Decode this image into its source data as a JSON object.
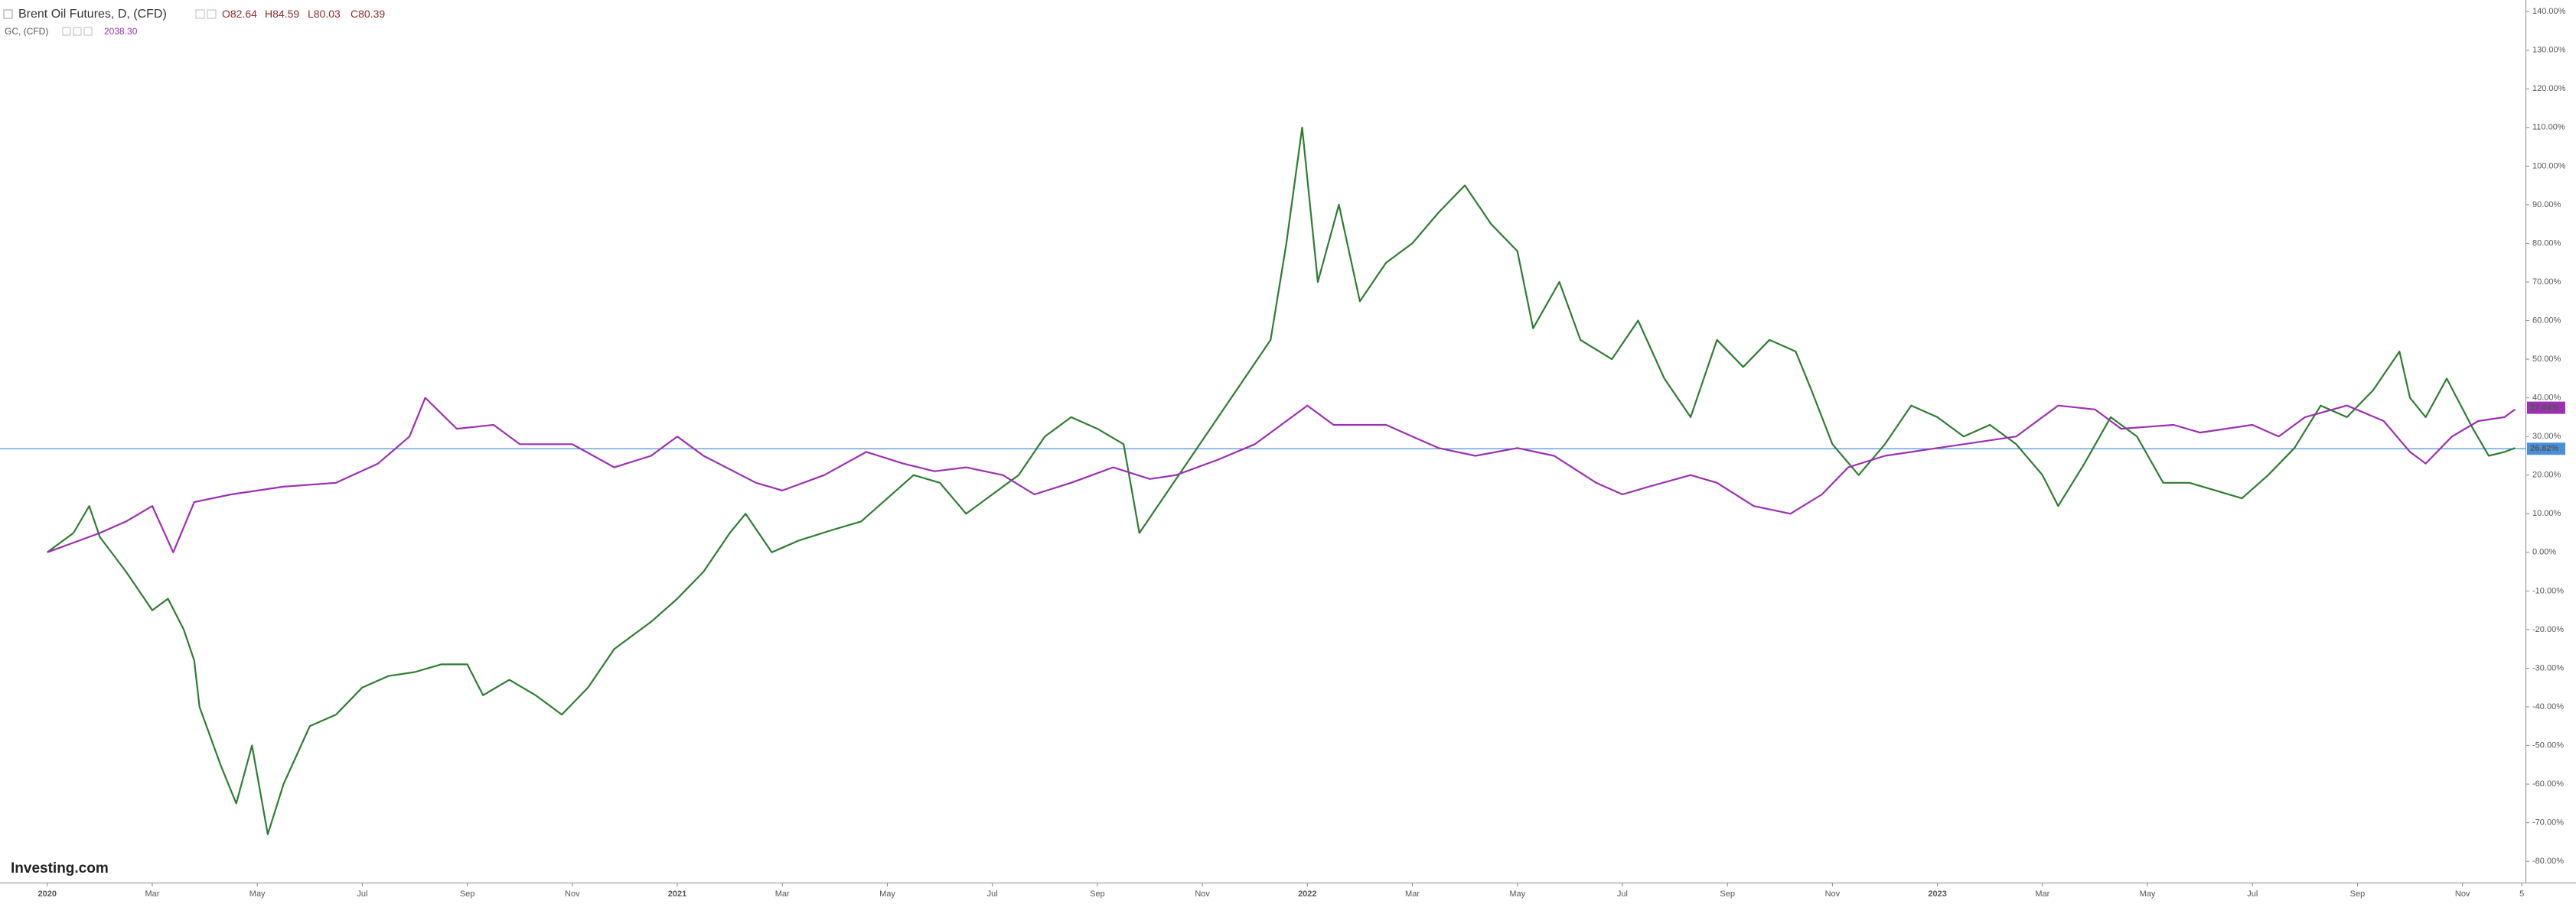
{
  "chart_data": {
    "type": "line",
    "title": "Brent Oil Futures, D, (CFD)",
    "ohlc": [
      "O82.64",
      "H84.59",
      "L80.03",
      "C80.39"
    ],
    "compare_title": "GC, (CFD)",
    "compare_value": "2038.30",
    "logo": "Investing.com",
    "xlim": [
      -0.9,
      47.2
    ],
    "xticks": [
      {
        "value": 0,
        "label": "2020"
      },
      {
        "value": 2,
        "label": "Mar"
      },
      {
        "value": 4,
        "label": "May"
      },
      {
        "value": 6,
        "label": "Jul"
      },
      {
        "value": 8,
        "label": "Sep"
      },
      {
        "value": 10,
        "label": "Nov"
      },
      {
        "value": 12,
        "label": "2021"
      },
      {
        "value": 14,
        "label": "Mar"
      },
      {
        "value": 16,
        "label": "May"
      },
      {
        "value": 18,
        "label": "Jul"
      },
      {
        "value": 20,
        "label": "Sep"
      },
      {
        "value": 22,
        "label": "Nov"
      },
      {
        "value": 24,
        "label": "2022"
      },
      {
        "value": 26,
        "label": "Mar"
      },
      {
        "value": 28,
        "label": "May"
      },
      {
        "value": 30,
        "label": "Jul"
      },
      {
        "value": 32,
        "label": "Sep"
      },
      {
        "value": 34,
        "label": "Nov"
      },
      {
        "value": 36,
        "label": "2023"
      },
      {
        "value": 38,
        "label": "Mar"
      },
      {
        "value": 40,
        "label": "May"
      },
      {
        "value": 42,
        "label": "Jul"
      },
      {
        "value": 44,
        "label": "Sep"
      },
      {
        "value": 46,
        "label": "Nov"
      },
      {
        "value": 47.13,
        "label": "5"
      }
    ],
    "ylim": [
      -85.5,
      143
    ],
    "yticks": [
      {
        "value": 140,
        "label": "140.00%"
      },
      {
        "value": 130,
        "label": "130.00%"
      },
      {
        "value": 120,
        "label": "120.00%"
      },
      {
        "value": 110,
        "label": "110.00%"
      },
      {
        "value": 100,
        "label": "100.00%"
      },
      {
        "value": 90,
        "label": "90.00%"
      },
      {
        "value": 80,
        "label": "80.00%"
      },
      {
        "value": 70,
        "label": "70.00%"
      },
      {
        "value": 60,
        "label": "60.00%"
      },
      {
        "value": 50,
        "label": "50.00%"
      },
      {
        "value": 40,
        "label": "40.00%"
      },
      {
        "value": 30,
        "label": "30.00%"
      },
      {
        "value": 20,
        "label": "20.00%"
      },
      {
        "value": 10,
        "label": "10.00%"
      },
      {
        "value": 0,
        "label": "0.00%"
      },
      {
        "value": -10,
        "label": "-10.00%"
      },
      {
        "value": -20,
        "label": "-20.00%"
      },
      {
        "value": -30,
        "label": "-30.00%"
      },
      {
        "value": -40,
        "label": "-40.00%"
      },
      {
        "value": -50,
        "label": "-50.00%"
      },
      {
        "value": -60,
        "label": "-60.00%"
      },
      {
        "value": -70,
        "label": "-70.00%"
      },
      {
        "value": -80,
        "label": "-80.00%"
      }
    ],
    "hline": {
      "value": 26.82,
      "label": "26.82%",
      "color": "#4a90d9"
    },
    "series": [
      {
        "color": "#2e7d32",
        "x": [
          0,
          0.5,
          0.8,
          1,
          1.5,
          2,
          2.3,
          2.6,
          2.8,
          2.9,
          3.3,
          3.6,
          3.9,
          4.2,
          4.5,
          5,
          5.5,
          6,
          6.5,
          7,
          7.5,
          8,
          8.3,
          8.8,
          9.3,
          9.8,
          10.3,
          10.8,
          11.5,
          12,
          12.5,
          13,
          13.3,
          13.8,
          14.3,
          15,
          15.5,
          16,
          16.5,
          17,
          17.5,
          18,
          18.5,
          19,
          19.5,
          20,
          20.5,
          20.8,
          21.3,
          21.8,
          22.3,
          22.8,
          23.3,
          23.6,
          23.9,
          24.2,
          24.6,
          25,
          25.5,
          26,
          26.5,
          27,
          27.5,
          28,
          28.3,
          28.8,
          29.2,
          29.8,
          30.3,
          30.8,
          31.3,
          31.8,
          32.3,
          32.8,
          33.3,
          33.6,
          34,
          34.5,
          35,
          35.5,
          36,
          36.5,
          37,
          37.5,
          38,
          38.3,
          38.8,
          39.3,
          39.8,
          40.3,
          40.8,
          41.3,
          41.8,
          42.3,
          42.8,
          43.3,
          43.8,
          44.3,
          44.8,
          45,
          45.3,
          45.7,
          46.2,
          46.5,
          46.8,
          47
        ],
        "values": [
          0,
          5,
          12,
          4,
          -5,
          -15,
          -12,
          -20,
          -28,
          -40,
          -55,
          -65,
          -50,
          -73,
          -60,
          -45,
          -42,
          -35,
          -32,
          -31,
          -29,
          -29,
          -37,
          -33,
          -37,
          -42,
          -35,
          -25,
          -18,
          -12,
          -5,
          5,
          10,
          0,
          3,
          6,
          8,
          14,
          20,
          18,
          10,
          15,
          20,
          30,
          35,
          32,
          28,
          5,
          15,
          25,
          35,
          45,
          55,
          80,
          110,
          70,
          90,
          65,
          75,
          80,
          88,
          95,
          85,
          78,
          58,
          70,
          55,
          50,
          60,
          45,
          35,
          55,
          48,
          55,
          52,
          42,
          28,
          20,
          28,
          38,
          35,
          30,
          33,
          28,
          20,
          12,
          23,
          35,
          30,
          18,
          18,
          16,
          14,
          20,
          27,
          38,
          35,
          42,
          52,
          40,
          35,
          45,
          32,
          25,
          26,
          27
        ]
      },
      {
        "color": "#9b30b0",
        "last": {
          "value": 37.44,
          "label": "37.44%"
        },
        "x": [
          0,
          1,
          1.5,
          2,
          2.4,
          2.8,
          3.5,
          4.5,
          5.5,
          6.3,
          6.9,
          7.2,
          7.8,
          8.5,
          9,
          10,
          10.8,
          11.5,
          12,
          12.5,
          13.5,
          14,
          14.8,
          15.6,
          16.3,
          16.9,
          17.5,
          18.2,
          18.8,
          19.5,
          20.3,
          21,
          21.5,
          22.3,
          23,
          23.5,
          24,
          24.5,
          25.5,
          26,
          26.5,
          27.2,
          28,
          28.7,
          29.5,
          30,
          30.5,
          31.3,
          31.8,
          32.5,
          33.2,
          33.8,
          34.3,
          35,
          36,
          36.5,
          37.5,
          38.3,
          39,
          39.5,
          40.5,
          41,
          42,
          42.5,
          43,
          43.8,
          44.5,
          45,
          45.3,
          45.8,
          46.3,
          46.8,
          47
        ],
        "values": [
          0,
          5,
          8,
          12,
          0,
          13,
          15,
          17,
          18,
          23,
          30,
          40,
          32,
          33,
          28,
          28,
          22,
          25,
          30,
          25,
          18,
          16,
          20,
          26,
          23,
          21,
          22,
          20,
          15,
          18,
          22,
          19,
          20,
          24,
          28,
          33,
          38,
          33,
          33,
          30,
          27,
          25,
          27,
          25,
          18,
          15,
          17,
          20,
          18,
          12,
          10,
          15,
          22,
          25,
          27,
          28,
          30,
          38,
          37,
          32,
          33,
          31,
          33,
          30,
          35,
          38,
          34,
          26,
          23,
          30,
          34,
          35,
          37
        ]
      }
    ]
  }
}
